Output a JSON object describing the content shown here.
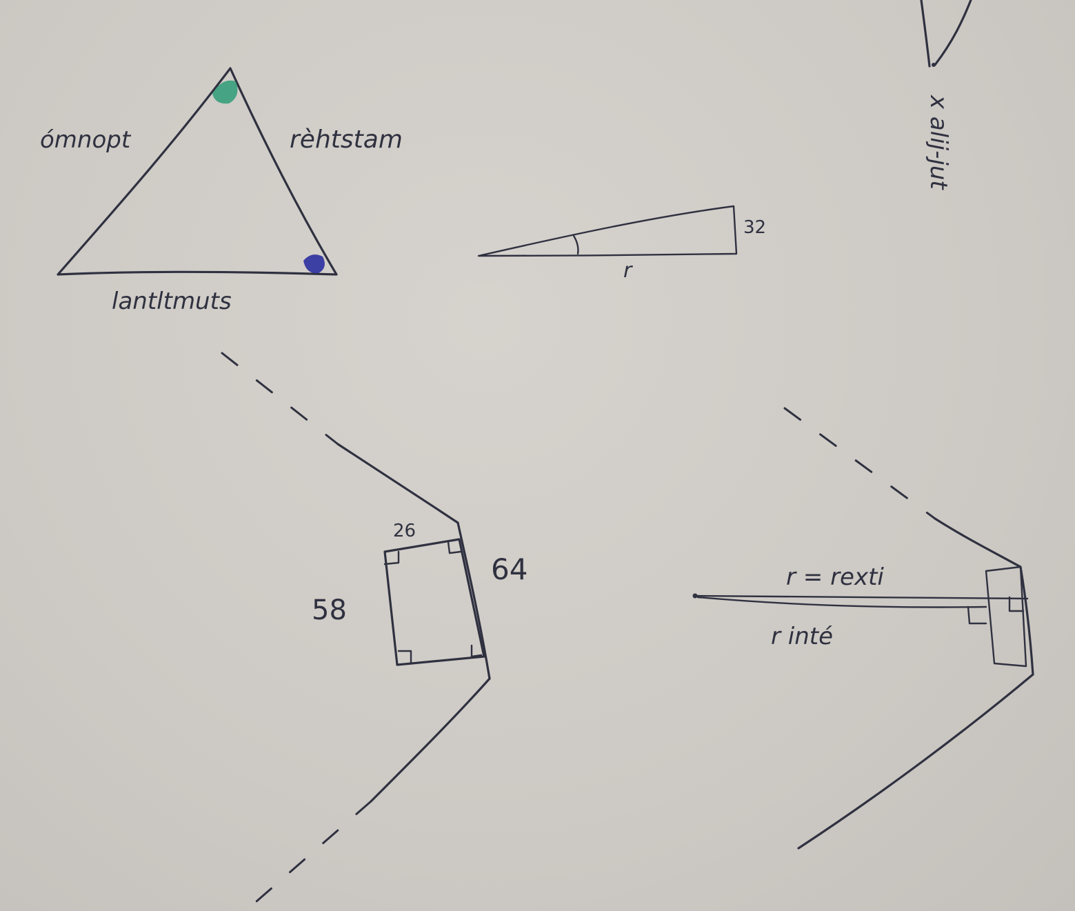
{
  "triangle": {
    "left_side_label": "ómnopt",
    "right_side_label": "rèhtstam",
    "bottom_label": "lantltmuts",
    "top_angle_color": "#2e9b78",
    "right_angle_color": "#2b2f9e"
  },
  "thin_triangle": {
    "vertical_label": "32",
    "base_label": "r"
  },
  "side_note": "x alij-jut",
  "left_figure": {
    "top_label": "26",
    "right_label": "64",
    "left_label": "58"
  },
  "right_figure": {
    "top_label": "r = rexti",
    "bottom_label": "r inté"
  }
}
